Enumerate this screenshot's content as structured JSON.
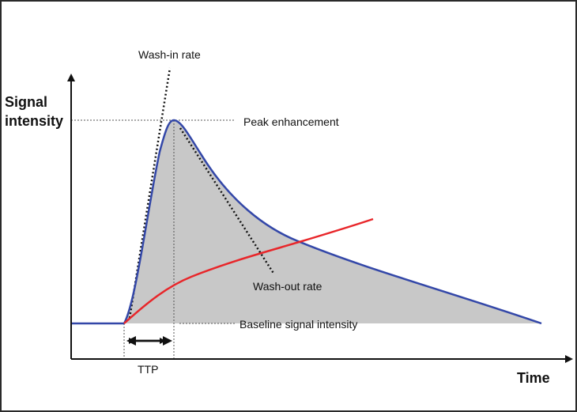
{
  "labels": {
    "y_axis_line1": "Signal",
    "y_axis_line2": "intensity",
    "x_axis": "Time",
    "wash_in": "Wash-in rate",
    "peak": "Peak enhancement",
    "wash_out": "Wash-out rate",
    "baseline": "Baseline signal intensity",
    "ttp": "TTP"
  },
  "colors": {
    "enhancement_curve": "#3347a8",
    "reference_curve": "#e8262a",
    "area_fill": "#c8c8c8",
    "tangent_lines": "#111111",
    "guides": "#555555",
    "axes": "#111111"
  }
}
